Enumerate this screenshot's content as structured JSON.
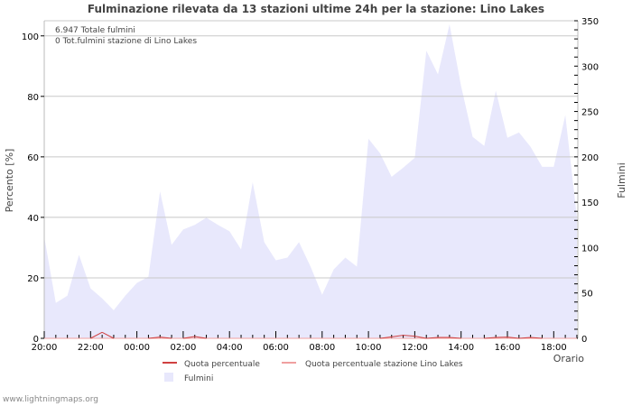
{
  "title": "Fulminazione rilevata da 13 stazioni ultime 24h per la stazione: Lino Lakes",
  "annotations": [
    "6.947 Totale fulmini",
    "0 Tot.fulmini stazione di Lino Lakes"
  ],
  "credit": "www.lightningmaps.org",
  "colors": {
    "area": "#e8e8fc",
    "quota": "#d04040",
    "quota_station": "#f0a0a0",
    "grid": "#c8c8c8",
    "text": "#444444"
  },
  "legend": {
    "quota": "Quota percentuale",
    "quota_station": "Quota percentuale stazione Lino Lakes",
    "fulmini": "Fulmini"
  },
  "axes": {
    "left_label": "Percento   [%]",
    "right_label": "Fulmini",
    "x_label": "Orario"
  },
  "chart_data": {
    "type": "area",
    "title": "Fulminazione rilevata da 13 stazioni ultime 24h per la stazione: Lino Lakes",
    "xlabel": "Orario",
    "ylabel": "Percento [%]",
    "y2label": "Fulmini",
    "ylim": [
      0,
      105
    ],
    "y2lim": [
      0,
      350
    ],
    "yticks": [
      0,
      20,
      40,
      60,
      80,
      100
    ],
    "y2ticks": [
      0,
      50,
      100,
      150,
      200,
      250,
      300,
      350
    ],
    "xticks": [
      "20:00",
      "22:00",
      "00:00",
      "02:00",
      "04:00",
      "06:00",
      "08:00",
      "10:00",
      "12:00",
      "14:00",
      "16:00",
      "18:00"
    ],
    "grid": true,
    "legend_position": "bottom",
    "x": [
      "20:00",
      "20:30",
      "21:00",
      "21:30",
      "22:00",
      "22:30",
      "23:00",
      "23:30",
      "00:00",
      "00:30",
      "01:00",
      "01:30",
      "02:00",
      "02:30",
      "03:00",
      "03:30",
      "04:00",
      "04:30",
      "05:00",
      "05:30",
      "06:00",
      "06:30",
      "07:00",
      "07:30",
      "08:00",
      "08:30",
      "09:00",
      "09:30",
      "10:00",
      "10:30",
      "11:00",
      "11:30",
      "12:00",
      "12:30",
      "13:00",
      "13:30",
      "14:00",
      "14:30",
      "15:00",
      "15:30",
      "16:00",
      "16:30",
      "17:00",
      "17:30",
      "18:00",
      "18:30",
      "19:00"
    ],
    "series": [
      {
        "name": "Fulmini",
        "axis": "right",
        "type": "area",
        "values": [
          112,
          39,
          47,
          92,
          55,
          44,
          31,
          47,
          61,
          68,
          162,
          103,
          120,
          125,
          133,
          125,
          118,
          98,
          172,
          106,
          86,
          89,
          106,
          79,
          48,
          76,
          89,
          79,
          220,
          204,
          178,
          188,
          199,
          317,
          291,
          346,
          278,
          222,
          212,
          273,
          221,
          227,
          211,
          189,
          189,
          246,
          134
        ]
      },
      {
        "name": "Quota percentuale",
        "axis": "left",
        "type": "line",
        "values": [
          0,
          0,
          0,
          0,
          0,
          2,
          0,
          0,
          0,
          0,
          0.4,
          0,
          0,
          0.6,
          0,
          0,
          0,
          0,
          0,
          0,
          0,
          0,
          0,
          0,
          0,
          0,
          0,
          0,
          0,
          0,
          0.5,
          1,
          0.7,
          0,
          0.3,
          0.3,
          0,
          0,
          0,
          0.3,
          0.4,
          0,
          0.3,
          0,
          0,
          0,
          0
        ]
      },
      {
        "name": "Quota percentuale stazione Lino Lakes",
        "axis": "left",
        "type": "line",
        "values": [
          0,
          0,
          0,
          0,
          0,
          0,
          0,
          0,
          0,
          0,
          0,
          0,
          0,
          0,
          0,
          0,
          0,
          0,
          0,
          0,
          0,
          0,
          0,
          0,
          0,
          0,
          0,
          0,
          0,
          0,
          0,
          0,
          0,
          0,
          0,
          0,
          0,
          0,
          0,
          0,
          0,
          0,
          0,
          0,
          0,
          0,
          0
        ]
      }
    ]
  }
}
